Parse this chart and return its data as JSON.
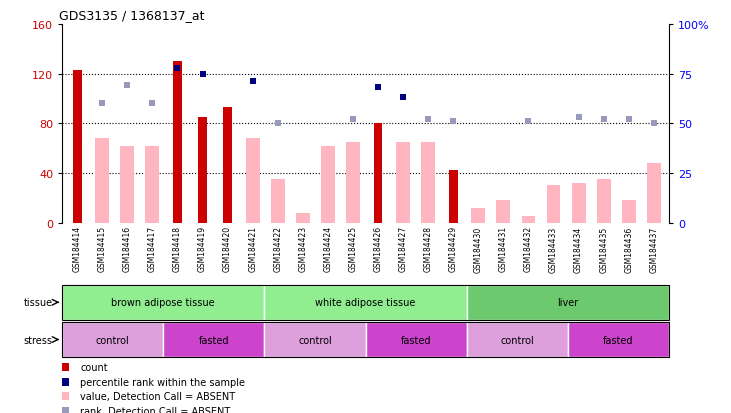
{
  "title": "GDS3135 / 1368137_at",
  "samples": [
    "GSM184414",
    "GSM184415",
    "GSM184416",
    "GSM184417",
    "GSM184418",
    "GSM184419",
    "GSM184420",
    "GSM184421",
    "GSM184422",
    "GSM184423",
    "GSM184424",
    "GSM184425",
    "GSM184426",
    "GSM184427",
    "GSM184428",
    "GSM184429",
    "GSM184430",
    "GSM184431",
    "GSM184432",
    "GSM184433",
    "GSM184434",
    "GSM184435",
    "GSM184436",
    "GSM184437"
  ],
  "count_values": [
    123,
    0,
    0,
    0,
    130,
    85,
    93,
    0,
    0,
    0,
    0,
    0,
    80,
    0,
    0,
    42,
    0,
    0,
    0,
    0,
    0,
    0,
    0,
    0
  ],
  "absent_value_bars": [
    0,
    68,
    62,
    62,
    0,
    0,
    0,
    68,
    35,
    8,
    62,
    65,
    0,
    65,
    65,
    0,
    12,
    18,
    5,
    30,
    32,
    35,
    18,
    48
  ],
  "percentile_rank_pct": [
    0,
    0,
    0,
    0,
    78,
    75,
    0,
    71,
    0,
    0,
    0,
    0,
    68,
    63,
    0,
    0,
    0,
    0,
    0,
    0,
    0,
    0,
    0,
    0
  ],
  "absent_rank_pct": [
    0,
    60,
    69,
    60,
    0,
    0,
    0,
    0,
    50,
    0,
    0,
    52,
    0,
    0,
    52,
    51,
    0,
    0,
    51,
    0,
    53,
    52,
    52,
    50
  ],
  "left_ylim": [
    0,
    160
  ],
  "right_ylim": [
    0,
    100
  ],
  "left_yticks": [
    0,
    40,
    80,
    120,
    160
  ],
  "right_yticks": [
    0,
    25,
    50,
    75,
    100
  ],
  "right_yticklabels": [
    "0",
    "25",
    "50",
    "75",
    "100%"
  ],
  "bar_color_dark": "#CC0000",
  "bar_color_light": "#FFB6C1",
  "dot_color_dark": "#000080",
  "dot_color_light": "#9999BB",
  "tissue_groups": [
    {
      "label": "brown adipose tissue",
      "start": 0,
      "end": 8,
      "color": "#90EE90"
    },
    {
      "label": "white adipose tissue",
      "start": 8,
      "end": 16,
      "color": "#90EE90"
    },
    {
      "label": "liver",
      "start": 16,
      "end": 24,
      "color": "#6DC96D"
    }
  ],
  "stress_groups": [
    {
      "label": "control",
      "start": 0,
      "end": 4,
      "color": "#DDA0DD"
    },
    {
      "label": "fasted",
      "start": 4,
      "end": 8,
      "color": "#CC44CC"
    },
    {
      "label": "control",
      "start": 8,
      "end": 12,
      "color": "#DDA0DD"
    },
    {
      "label": "fasted",
      "start": 12,
      "end": 16,
      "color": "#CC44CC"
    },
    {
      "label": "control",
      "start": 16,
      "end": 20,
      "color": "#DDA0DD"
    },
    {
      "label": "fasted",
      "start": 20,
      "end": 24,
      "color": "#CC44CC"
    }
  ],
  "legend_items": [
    {
      "color": "#CC0000",
      "label": "count"
    },
    {
      "color": "#000080",
      "label": "percentile rank within the sample"
    },
    {
      "color": "#FFB6C1",
      "label": "value, Detection Call = ABSENT"
    },
    {
      "color": "#9999BB",
      "label": "rank, Detection Call = ABSENT"
    }
  ]
}
